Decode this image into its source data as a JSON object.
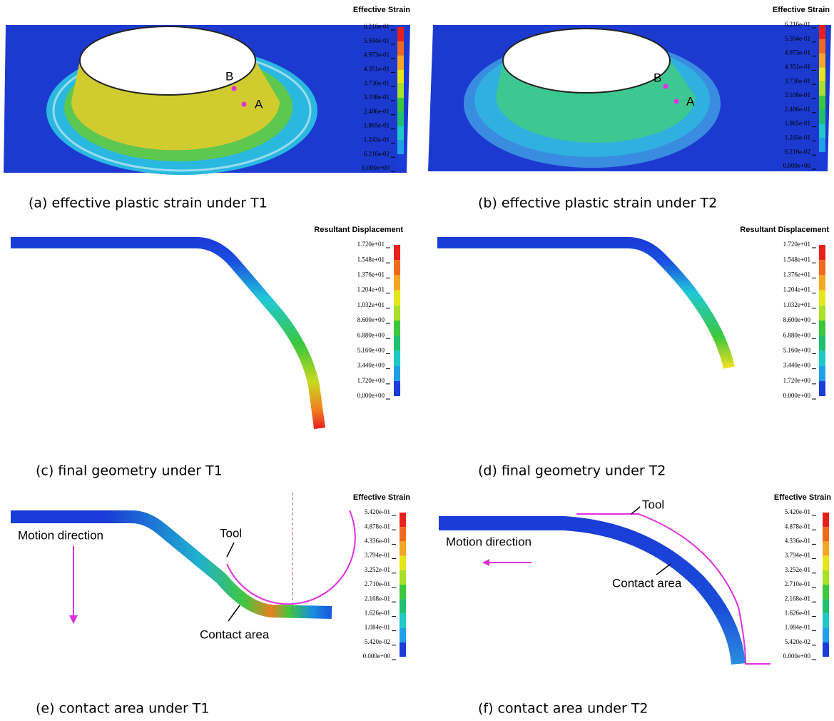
{
  "panels": [
    {
      "caption": "(a) effective plastic strain under T1",
      "legend": {
        "title": "Effective Strain",
        "labels": [
          "6.216e-01",
          "5.594e-01",
          "4.973e-01",
          "4.351e-01",
          "3.730e-01",
          "3.108e-01",
          "2.486e-01",
          "1.865e-01",
          "1.243e-01",
          "6.216e-02",
          "0.000e+00"
        ]
      },
      "annotations": [
        "B",
        "A"
      ]
    },
    {
      "caption": "(b) effective plastic strain under T2",
      "legend": {
        "title": "Effective Strain",
        "labels": [
          "6.216e-01",
          "5.594e-01",
          "4.973e-01",
          "4.351e-01",
          "3.730e-01",
          "3.108e-01",
          "2.486e-01",
          "1.865e-01",
          "1.243e-01",
          "6.216e-02",
          "0.000e+00"
        ]
      },
      "annotations": [
        "B",
        "A"
      ]
    },
    {
      "caption": "(c) final geometry under T1",
      "legend": {
        "title": "Resultant Displacement",
        "labels": [
          "1.720e+01",
          "1.548e+01",
          "1.376e+01",
          "1.204e+01",
          "1.032e+01",
          "8.600e+00",
          "6.880e+00",
          "5.160e+00",
          "3.440e+00",
          "1.720e+00",
          "0.000e+00"
        ]
      },
      "annotations": []
    },
    {
      "caption": "(d) final geometry under T2",
      "legend": {
        "title": "Resultant Displacement",
        "labels": [
          "1.720e+01",
          "1.548e+01",
          "1.376e+01",
          "1.204e+01",
          "1.032e+01",
          "8.600e+00",
          "6.880e+00",
          "5.160e+00",
          "3.440e+00",
          "1.720e+00",
          "0.000e+00"
        ]
      },
      "annotations": []
    },
    {
      "caption": "(e) contact area under T1",
      "legend": {
        "title": "Effective Strain",
        "labels": [
          "5.420e-01",
          "4.878e-01",
          "4.336e-01",
          "3.794e-01",
          "3.252e-01",
          "2.710e-01",
          "2.168e-01",
          "1.626e-01",
          "1.084e-01",
          "5.420e-02",
          "0.000e+00"
        ]
      },
      "annotations": [
        "Motion direction",
        "Tool",
        "Contact area"
      ]
    },
    {
      "caption": "(f) contact area under T2",
      "legend": {
        "title": "Effective Strain",
        "labels": [
          "5.420e-01",
          "4.878e-01",
          "4.336e-01",
          "3.794e-01",
          "3.252e-01",
          "2.710e-01",
          "2.168e-01",
          "1.626e-01",
          "1.084e-01",
          "5.420e-02",
          "0.000e+00"
        ]
      },
      "annotations": [
        "Motion direction",
        "Tool",
        "Contact area"
      ]
    }
  ]
}
